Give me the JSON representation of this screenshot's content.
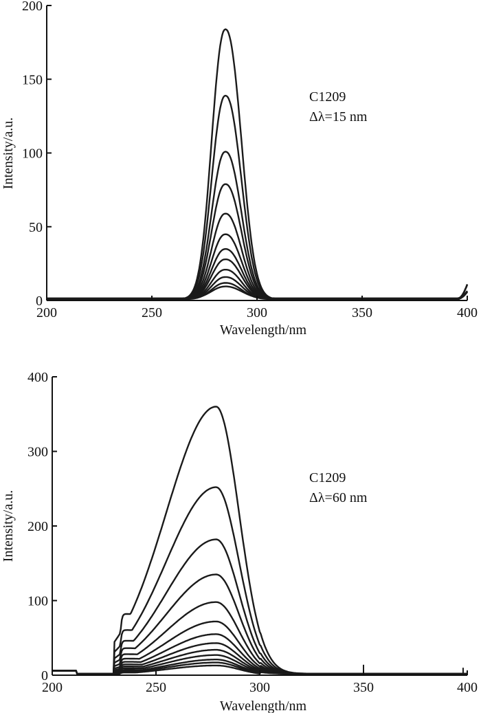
{
  "chart_data": [
    {
      "type": "line",
      "title": "",
      "xlabel": "Wavelength/nm",
      "ylabel": "Intensity/a.u.",
      "xlim": [
        200,
        400
      ],
      "ylim": [
        0,
        200
      ],
      "x_ticks": [
        200,
        250,
        300,
        350,
        400
      ],
      "y_ticks": [
        0,
        50,
        100,
        150,
        200
      ],
      "annotation": [
        "C1209",
        "Δλ=15 nm"
      ],
      "peak_wavelength": 285,
      "series_peaks": [
        183,
        138,
        100,
        78,
        58,
        44,
        34,
        27,
        20,
        15,
        11,
        8
      ],
      "baseline_level": 1.5,
      "edge_rise_at_400": 10
    },
    {
      "type": "line",
      "title": "",
      "xlabel": "Wavelength/nm",
      "ylabel": "Intensity/a.u.",
      "xlim": [
        200,
        400
      ],
      "ylim": [
        0,
        400
      ],
      "x_ticks": [
        200,
        250,
        300,
        350,
        400
      ],
      "y_ticks": [
        0,
        100,
        200,
        300,
        400
      ],
      "annotation": [
        "C1209",
        "Δλ=60 nm"
      ],
      "peak_wavelength": 279,
      "series_peaks": [
        360,
        252,
        182,
        135,
        98,
        72,
        55,
        43,
        34,
        27,
        21,
        17,
        13
      ],
      "shoulder_wavelength": 237,
      "baseline_level": 3
    }
  ],
  "style": {
    "line_color": "#1a1a1a",
    "axis_color": "#111111"
  }
}
